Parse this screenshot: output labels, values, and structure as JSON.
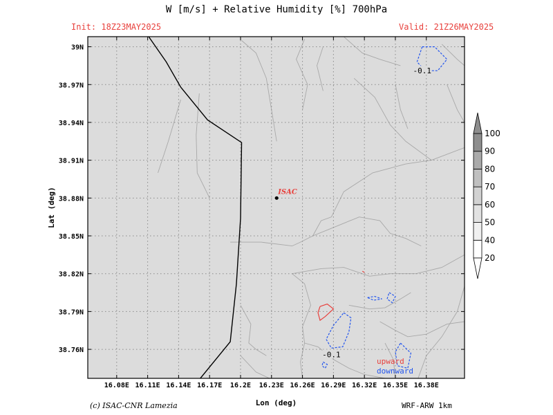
{
  "header": {
    "title": "W [m/s] + Relative Humidity [%] 700hPa",
    "init": "Init: 18Z23MAY2025",
    "valid": "Valid: 21Z26MAY2025"
  },
  "footer": {
    "credit": "(c) ISAC-CNR Lamezia",
    "model": "WRF-ARW 1km"
  },
  "colors": {
    "background": "#dcdcdc",
    "upward": "#e8403c",
    "downward": "#2255ee",
    "coastline": "#000000",
    "terrain": "#a8a8a8",
    "grid": "#8a8a8a"
  },
  "chart_data": {
    "type": "contour",
    "xlabel": "Lon (deg)",
    "ylabel": "Lat (deg)",
    "xlim": [
      16.052,
      16.417
    ],
    "ylim": [
      38.737,
      39.008
    ],
    "x_ticks": [
      16.08,
      16.11,
      16.14,
      16.17,
      16.2,
      16.23,
      16.26,
      16.29,
      16.32,
      16.35,
      16.38
    ],
    "x_tick_labels": [
      "16.08E",
      "16.11E",
      "16.14E",
      "16.17E",
      "16.2E",
      "16.23E",
      "16.26E",
      "16.29E",
      "16.32E",
      "16.35E",
      "16.38E"
    ],
    "y_ticks": [
      39.0,
      38.97,
      38.94,
      38.91,
      38.88,
      38.85,
      38.82,
      38.79,
      38.76
    ],
    "y_tick_labels": [
      "39N",
      "38.97N",
      "38.94N",
      "38.91N",
      "38.88N",
      "38.85N",
      "38.82N",
      "38.79N",
      "38.76N"
    ],
    "grid": true,
    "colorbar": {
      "levels": [
        20,
        40,
        50,
        60,
        70,
        80,
        90,
        100
      ],
      "labels": [
        "20",
        "40",
        "50",
        "60",
        "70",
        "80",
        "90",
        "100"
      ],
      "colors": [
        "#ffffff",
        "#f0f0f0",
        "#e2e2e2",
        "#d2d2d2",
        "#c0c0c0",
        "#aaaaaa",
        "#8e8e8e"
      ]
    },
    "station": {
      "name": "ISAC",
      "lon": 16.235,
      "lat": 38.88
    },
    "legend": [
      {
        "label": "upward",
        "color": "#e8403c"
      },
      {
        "label": "downward",
        "color": "#2255ee"
      }
    ],
    "contour_labels": [
      {
        "text": "-0.1",
        "lon": 16.376,
        "lat": 38.981
      },
      {
        "text": "-0.1",
        "lon": 16.288,
        "lat": 38.756
      }
    ],
    "coastline": [
      [
        16.111,
        39.008
      ],
      [
        16.128,
        38.988
      ],
      [
        16.142,
        38.968
      ],
      [
        16.168,
        38.942
      ],
      [
        16.201,
        38.924
      ],
      [
        16.2,
        38.864
      ],
      [
        16.196,
        38.812
      ],
      [
        16.19,
        38.766
      ],
      [
        16.161,
        38.737
      ]
    ],
    "contours": [
      {
        "kind": "upward",
        "points": [
          [
            16.277,
            38.794
          ],
          [
            16.284,
            38.796
          ],
          [
            16.29,
            38.792
          ],
          [
            16.282,
            38.786
          ],
          [
            16.277,
            38.783
          ],
          [
            16.275,
            38.789
          ],
          [
            16.277,
            38.794
          ]
        ]
      },
      {
        "kind": "upward",
        "points": [
          [
            16.318,
            38.822
          ],
          [
            16.32,
            38.821
          ]
        ]
      },
      {
        "kind": "downward",
        "points": [
          [
            16.376,
            39.0
          ],
          [
            16.388,
            39.0
          ],
          [
            16.4,
            38.99
          ],
          [
            16.391,
            38.981
          ],
          [
            16.379,
            38.981
          ],
          [
            16.371,
            38.988
          ],
          [
            16.376,
            39.0
          ]
        ]
      },
      {
        "kind": "downward",
        "points": [
          [
            16.3,
            38.789
          ],
          [
            16.307,
            38.785
          ],
          [
            16.305,
            38.774
          ],
          [
            16.299,
            38.762
          ],
          [
            16.288,
            38.761
          ],
          [
            16.283,
            38.768
          ],
          [
            16.29,
            38.779
          ],
          [
            16.3,
            38.789
          ]
        ]
      },
      {
        "kind": "downward",
        "points": [
          [
            16.323,
            38.801
          ],
          [
            16.33,
            38.802
          ],
          [
            16.337,
            38.8
          ],
          [
            16.329,
            38.799
          ],
          [
            16.323,
            38.801
          ]
        ]
      },
      {
        "kind": "downward",
        "points": [
          [
            16.344,
            38.805
          ],
          [
            16.35,
            38.802
          ],
          [
            16.347,
            38.797
          ],
          [
            16.342,
            38.8
          ],
          [
            16.344,
            38.805
          ]
        ]
      },
      {
        "kind": "downward",
        "points": [
          [
            16.355,
            38.765
          ],
          [
            16.365,
            38.757
          ],
          [
            16.362,
            38.745
          ],
          [
            16.352,
            38.747
          ],
          [
            16.35,
            38.758
          ],
          [
            16.355,
            38.765
          ]
        ]
      },
      {
        "kind": "downward",
        "points": [
          [
            16.28,
            38.75
          ],
          [
            16.284,
            38.748
          ],
          [
            16.282,
            38.745
          ],
          [
            16.279,
            38.747
          ],
          [
            16.28,
            38.75
          ]
        ]
      }
    ],
    "terrain_lines": [
      [
        [
          16.16,
          38.963
        ],
        [
          16.157,
          38.93
        ],
        [
          16.158,
          38.9
        ],
        [
          16.17,
          38.88
        ]
      ],
      [
        [
          16.142,
          38.958
        ],
        [
          16.13,
          38.925
        ],
        [
          16.12,
          38.9
        ]
      ],
      [
        [
          16.201,
          39.005
        ],
        [
          16.215,
          38.995
        ],
        [
          16.225,
          38.975
        ],
        [
          16.23,
          38.95
        ],
        [
          16.235,
          38.925
        ]
      ],
      [
        [
          16.262,
          39.006
        ],
        [
          16.254,
          38.99
        ],
        [
          16.265,
          38.97
        ],
        [
          16.26,
          38.95
        ]
      ],
      [
        [
          16.28,
          39.0
        ],
        [
          16.274,
          38.985
        ],
        [
          16.28,
          38.965
        ]
      ],
      [
        [
          16.3,
          39.008
        ],
        [
          16.318,
          38.995
        ],
        [
          16.335,
          38.99
        ],
        [
          16.355,
          38.985
        ]
      ],
      [
        [
          16.31,
          38.975
        ],
        [
          16.33,
          38.96
        ],
        [
          16.345,
          38.938
        ],
        [
          16.36,
          38.925
        ],
        [
          16.385,
          38.91
        ],
        [
          16.417,
          38.92
        ]
      ],
      [
        [
          16.35,
          38.97
        ],
        [
          16.355,
          38.95
        ],
        [
          16.362,
          38.935
        ]
      ],
      [
        [
          16.27,
          38.85
        ],
        [
          16.278,
          38.862
        ],
        [
          16.288,
          38.865
        ],
        [
          16.3,
          38.885
        ],
        [
          16.328,
          38.9
        ],
        [
          16.36,
          38.907
        ],
        [
          16.385,
          38.91
        ]
      ],
      [
        [
          16.258,
          38.845
        ],
        [
          16.27,
          38.85
        ],
        [
          16.285,
          38.855
        ],
        [
          16.3,
          38.86
        ],
        [
          16.315,
          38.865
        ],
        [
          16.335,
          38.862
        ],
        [
          16.345,
          38.852
        ],
        [
          16.36,
          38.848
        ],
        [
          16.375,
          38.842
        ]
      ],
      [
        [
          16.19,
          38.845
        ],
        [
          16.22,
          38.845
        ],
        [
          16.25,
          38.842
        ],
        [
          16.258,
          38.845
        ]
      ],
      [
        [
          16.25,
          38.82
        ],
        [
          16.278,
          38.824
        ],
        [
          16.3,
          38.825
        ],
        [
          16.325,
          38.818
        ],
        [
          16.345,
          38.82
        ],
        [
          16.37,
          38.82
        ],
        [
          16.395,
          38.825
        ],
        [
          16.417,
          38.835
        ]
      ],
      [
        [
          16.25,
          38.82
        ],
        [
          16.262,
          38.812
        ],
        [
          16.268,
          38.795
        ],
        [
          16.26,
          38.778
        ],
        [
          16.262,
          38.765
        ],
        [
          16.258,
          38.75
        ],
        [
          16.26,
          38.737
        ]
      ],
      [
        [
          16.2,
          38.795
        ],
        [
          16.21,
          38.78
        ],
        [
          16.208,
          38.765
        ],
        [
          16.215,
          38.76
        ],
        [
          16.225,
          38.755
        ]
      ],
      [
        [
          16.262,
          38.765
        ],
        [
          16.275,
          38.762
        ],
        [
          16.29,
          38.752
        ],
        [
          16.305,
          38.745
        ],
        [
          16.32,
          38.74
        ],
        [
          16.34,
          38.737
        ]
      ],
      [
        [
          16.305,
          38.795
        ],
        [
          16.325,
          38.792
        ],
        [
          16.34,
          38.793
        ],
        [
          16.355,
          38.8
        ],
        [
          16.365,
          38.805
        ]
      ],
      [
        [
          16.335,
          38.782
        ],
        [
          16.35,
          38.775
        ],
        [
          16.362,
          38.77
        ],
        [
          16.38,
          38.772
        ],
        [
          16.4,
          38.78
        ],
        [
          16.417,
          38.782
        ]
      ],
      [
        [
          16.34,
          38.765
        ],
        [
          16.348,
          38.752
        ],
        [
          16.35,
          38.737
        ]
      ],
      [
        [
          16.372,
          38.737
        ],
        [
          16.38,
          38.755
        ],
        [
          16.395,
          38.77
        ],
        [
          16.41,
          38.79
        ],
        [
          16.417,
          38.81
        ]
      ],
      [
        [
          16.4,
          38.97
        ],
        [
          16.41,
          38.95
        ],
        [
          16.417,
          38.94
        ]
      ],
      [
        [
          16.395,
          39.002
        ],
        [
          16.41,
          38.99
        ],
        [
          16.417,
          38.985
        ]
      ],
      [
        [
          16.2,
          38.755
        ],
        [
          16.215,
          38.742
        ],
        [
          16.228,
          38.737
        ]
      ]
    ]
  }
}
